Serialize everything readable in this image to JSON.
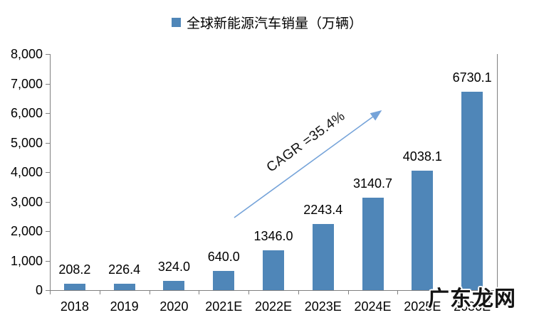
{
  "chart_data": {
    "type": "bar",
    "title": "全球新能源汽车销量（万辆）",
    "categories": [
      "2018",
      "2019",
      "2020",
      "2021E",
      "2022E",
      "2023E",
      "2024E",
      "2025E",
      "2030E"
    ],
    "values": [
      208.2,
      226.4,
      324.0,
      640.0,
      1346.0,
      2243.4,
      3140.7,
      4038.1,
      6730.1
    ],
    "data_labels": [
      "208.2",
      "226.4",
      "324.0",
      "640.0",
      "1346.0",
      "2243.4",
      "3140.7",
      "4038.1",
      "6730.1"
    ],
    "xlabel": "",
    "ylabel": "",
    "ylim": [
      0,
      8000
    ],
    "y_tick_interval": 1000,
    "y_tick_labels": [
      "0",
      "1,000",
      "2,000",
      "3,000",
      "4,000",
      "5,000",
      "6,000",
      "7,000",
      "8,000"
    ],
    "grid": false,
    "legend": {
      "label": "全球新能源汽车销量（万辆）",
      "position": "top-center"
    },
    "bar_color": "#4F86B8",
    "annotation": {
      "text": "CAGR =35.4%",
      "arrow_color": "#75A3D9"
    }
  },
  "watermark": {
    "text": "广东龙网"
  }
}
